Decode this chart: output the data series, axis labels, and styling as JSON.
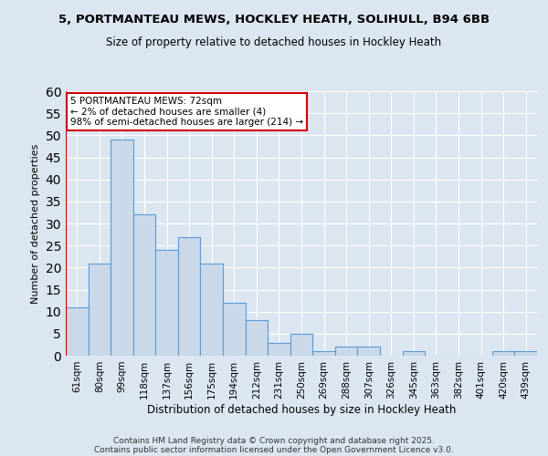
{
  "title1": "5, PORTMANTEAU MEWS, HOCKLEY HEATH, SOLIHULL, B94 6BB",
  "title2": "Size of property relative to detached houses in Hockley Heath",
  "xlabel": "Distribution of detached houses by size in Hockley Heath",
  "ylabel": "Number of detached properties",
  "categories": [
    "61sqm",
    "80sqm",
    "99sqm",
    "118sqm",
    "137sqm",
    "156sqm",
    "175sqm",
    "194sqm",
    "212sqm",
    "231sqm",
    "250sqm",
    "269sqm",
    "288sqm",
    "307sqm",
    "326sqm",
    "345sqm",
    "363sqm",
    "382sqm",
    "401sqm",
    "420sqm",
    "439sqm"
  ],
  "values": [
    11,
    21,
    49,
    32,
    24,
    27,
    21,
    12,
    8,
    3,
    5,
    1,
    2,
    2,
    0,
    1,
    0,
    0,
    0,
    1,
    1
  ],
  "bar_color": "#c9d9ea",
  "bar_edge_color": "#5b9bd5",
  "background_color": "#dce6f1",
  "annotation_text": "5 PORTMANTEAU MEWS: 72sqm\n← 2% of detached houses are smaller (4)\n98% of semi-detached houses are larger (214) →",
  "vline_color": "#cc0000",
  "footer_line1": "Contains HM Land Registry data © Crown copyright and database right 2025.",
  "footer_line2": "Contains public sector information licensed under the Open Government Licence v3.0.",
  "ylim": [
    0,
    60
  ],
  "yticks": [
    0,
    5,
    10,
    15,
    20,
    25,
    30,
    35,
    40,
    45,
    50,
    55,
    60
  ]
}
